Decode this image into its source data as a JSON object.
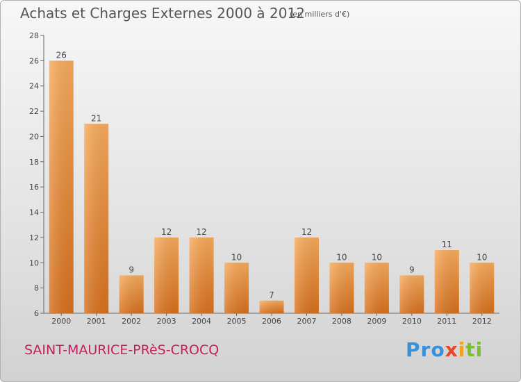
{
  "chart_data": {
    "type": "bar",
    "title": "Achats et Charges Externes 2000 à 2012",
    "subtitle": "(en milliers d'€)",
    "categories": [
      "2000",
      "2001",
      "2002",
      "2003",
      "2004",
      "2005",
      "2006",
      "2007",
      "2008",
      "2009",
      "2010",
      "2011",
      "2012"
    ],
    "values": [
      26,
      21,
      9,
      12,
      12,
      10,
      7,
      12,
      10,
      10,
      9,
      11,
      10
    ],
    "ylim": [
      6,
      28
    ],
    "yticks": [
      6,
      8,
      10,
      12,
      14,
      16,
      18,
      20,
      22,
      24,
      26,
      28
    ],
    "grid": false,
    "legend": "none",
    "bar_color": "#f08a2e"
  },
  "footer": {
    "commune": "SAINT-MAURICE-PRèS-CROCQ",
    "logo": [
      "Pro",
      "x",
      "i",
      "ti"
    ]
  },
  "colors": {
    "commune_text": "#c41e5c",
    "bar_light": "#f7a95a",
    "bar_dark": "#d9701c"
  }
}
